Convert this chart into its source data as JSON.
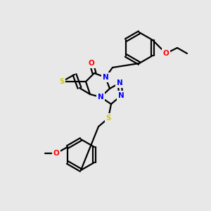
{
  "background_color": "#e8e8e8",
  "atom_colors": {
    "N": "#0000ff",
    "O": "#ff0000",
    "S": "#cccc00"
  },
  "bond_color": "#000000",
  "lw": 1.6,
  "figsize": [
    3.0,
    3.0
  ],
  "dpi": 100
}
